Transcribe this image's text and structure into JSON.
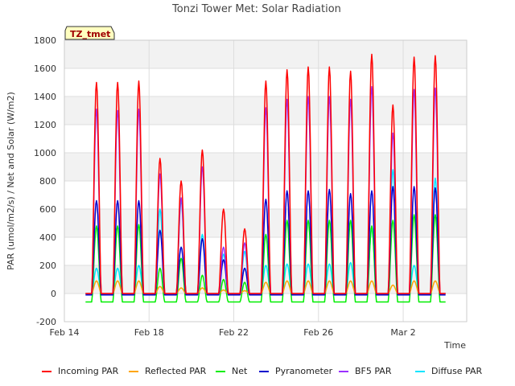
{
  "chart_data": {
    "type": "line",
    "title": "Tonzi Tower Met: Solar Radiation",
    "xlabel": "Time",
    "ylabel": "PAR (umol/m2/s) / Net and Solar (W/m2)",
    "ylim": [
      -200,
      1800
    ],
    "yticks": [
      -200,
      0,
      200,
      400,
      600,
      800,
      1000,
      1200,
      1400,
      1600,
      1800
    ],
    "xlim": [
      "2015-02-14",
      "2015-03-05"
    ],
    "xticks": [
      {
        "date": "2015-02-14",
        "label": "Feb 14"
      },
      {
        "date": "2015-02-18",
        "label": "Feb 18"
      },
      {
        "date": "2015-02-22",
        "label": "Feb 22"
      },
      {
        "date": "2015-02-26",
        "label": "Feb 26"
      },
      {
        "date": "2015-03-02",
        "label": "Mar 2"
      }
    ],
    "grid": true,
    "legend_position": "bottom",
    "annotation": "TZ_tmet",
    "days": [
      "2015-02-14",
      "2015-02-15",
      "2015-02-16",
      "2015-02-17",
      "2015-02-18",
      "2015-02-19",
      "2015-02-20",
      "2015-02-21",
      "2015-02-22",
      "2015-02-23",
      "2015-02-24",
      "2015-02-25",
      "2015-02-26",
      "2015-02-27",
      "2015-02-28",
      "2015-03-01",
      "2015-03-02",
      "2015-03-03",
      "2015-03-04"
    ],
    "series": [
      {
        "name": "Incoming PAR",
        "color": "#ff0000",
        "night": 0,
        "daily_peak": [
          null,
          1500,
          1500,
          1510,
          960,
          800,
          1020,
          600,
          460,
          1510,
          1590,
          1610,
          1610,
          1580,
          1700,
          1340,
          1680,
          1690,
          null
        ]
      },
      {
        "name": "Reflected PAR",
        "color": "#ffa500",
        "night": 0,
        "daily_peak": [
          null,
          90,
          90,
          90,
          50,
          40,
          40,
          25,
          20,
          80,
          90,
          90,
          90,
          90,
          90,
          60,
          90,
          90,
          null
        ]
      },
      {
        "name": "Net",
        "color": "#00ee00",
        "night": -60,
        "daily_peak": [
          null,
          480,
          480,
          490,
          180,
          250,
          130,
          100,
          80,
          420,
          520,
          520,
          520,
          520,
          480,
          520,
          560,
          560,
          null
        ]
      },
      {
        "name": "Pyranometer",
        "color": "#0000cc",
        "night": -10,
        "daily_peak": [
          null,
          660,
          660,
          660,
          450,
          330,
          390,
          240,
          180,
          670,
          730,
          730,
          740,
          710,
          730,
          760,
          760,
          750,
          null
        ]
      },
      {
        "name": "BF5 PAR",
        "color": "#9b30ff",
        "night": 0,
        "daily_peak": [
          null,
          1310,
          1300,
          1310,
          850,
          680,
          900,
          330,
          360,
          1320,
          1380,
          1400,
          1400,
          1380,
          1470,
          1140,
          1450,
          1460,
          null
        ]
      },
      {
        "name": "Diffuse PAR",
        "color": "#00e5ff",
        "night": 0,
        "daily_peak": [
          null,
          180,
          180,
          200,
          600,
          660,
          420,
          280,
          300,
          200,
          210,
          210,
          210,
          220,
          460,
          880,
          200,
          820,
          null
        ]
      }
    ]
  }
}
